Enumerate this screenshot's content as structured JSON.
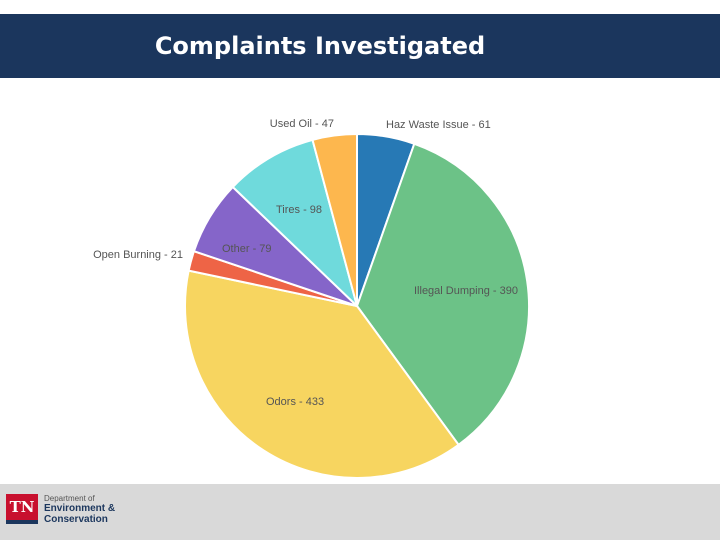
{
  "header": {
    "title": "Complaints Investigated"
  },
  "chart_data": {
    "type": "pie",
    "title": "",
    "slices": [
      {
        "label": "Haz Waste Issue - 61",
        "name": "Haz Waste Issue",
        "value": 61,
        "color": "#2779b5"
      },
      {
        "label": "Illegal Dumping - 390",
        "name": "Illegal Dumping",
        "value": 390,
        "color": "#6cc287"
      },
      {
        "label": "Odors - 433",
        "name": "Odors",
        "value": 433,
        "color": "#f7d560"
      },
      {
        "label": "Open Burning - 21",
        "name": "Open Burning",
        "value": 21,
        "color": "#ee6446"
      },
      {
        "label": "Other - 79",
        "name": "Other",
        "value": 79,
        "color": "#8565c9"
      },
      {
        "label": "Tires - 98",
        "name": "Tires",
        "value": 98,
        "color": "#6fdadc"
      },
      {
        "label": "Used Oil - 47",
        "name": "Used Oil",
        "value": 47,
        "color": "#fdb74e"
      }
    ]
  },
  "footer": {
    "logo_abbrev": "TN",
    "logo_line1": "Department of",
    "logo_line2": "Environment &",
    "logo_line3": "Conservation"
  }
}
